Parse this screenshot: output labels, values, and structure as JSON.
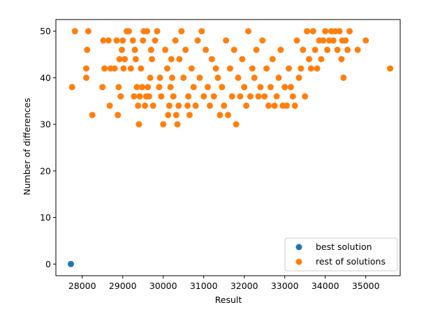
{
  "chart_data": {
    "type": "scatter",
    "xlabel": "Result",
    "ylabel": "Number of differences",
    "xlim": [
      27350,
      35850
    ],
    "ylim": [
      -2.5,
      52.5
    ],
    "xticks": [
      28000,
      29000,
      30000,
      31000,
      32000,
      33000,
      34000,
      35000
    ],
    "yticks": [
      0,
      10,
      20,
      30,
      40,
      50
    ],
    "grid": false,
    "legend": "lower right",
    "series": [
      {
        "name": "best solution",
        "color": "#1f77b4",
        "points": [
          [
            27720,
            0
          ]
        ]
      },
      {
        "name": "rest of solutions",
        "color": "#ff7f0e",
        "points": [
          [
            27750,
            38
          ],
          [
            27820,
            50
          ],
          [
            28100,
            42
          ],
          [
            28100,
            40
          ],
          [
            28120,
            46
          ],
          [
            28150,
            50
          ],
          [
            28250,
            32
          ],
          [
            28500,
            38
          ],
          [
            28520,
            48
          ],
          [
            28550,
            42
          ],
          [
            28650,
            48
          ],
          [
            28680,
            34
          ],
          [
            28700,
            42
          ],
          [
            28800,
            42
          ],
          [
            28850,
            48
          ],
          [
            28880,
            32
          ],
          [
            28900,
            38
          ],
          [
            28920,
            44
          ],
          [
            28950,
            36
          ],
          [
            28980,
            46
          ],
          [
            29000,
            48
          ],
          [
            29020,
            42
          ],
          [
            29050,
            44
          ],
          [
            29100,
            50
          ],
          [
            29150,
            50
          ],
          [
            29200,
            42
          ],
          [
            29250,
            48
          ],
          [
            29280,
            36
          ],
          [
            29300,
            46
          ],
          [
            29320,
            44
          ],
          [
            29350,
            38
          ],
          [
            29380,
            34
          ],
          [
            29400,
            30
          ],
          [
            29420,
            36
          ],
          [
            29450,
            42
          ],
          [
            29480,
            38
          ],
          [
            29500,
            48
          ],
          [
            29520,
            50
          ],
          [
            29550,
            34
          ],
          [
            29580,
            36
          ],
          [
            29600,
            50
          ],
          [
            29620,
            38
          ],
          [
            29650,
            36
          ],
          [
            29680,
            40
          ],
          [
            29700,
            46
          ],
          [
            29720,
            44
          ],
          [
            29750,
            34
          ],
          [
            29800,
            48
          ],
          [
            29850,
            50
          ],
          [
            29900,
            38
          ],
          [
            29920,
            40
          ],
          [
            29950,
            36
          ],
          [
            30000,
            30
          ],
          [
            30050,
            46
          ],
          [
            30100,
            42
          ],
          [
            30120,
            32
          ],
          [
            30150,
            34
          ],
          [
            30180,
            38
          ],
          [
            30200,
            44
          ],
          [
            30220,
            40
          ],
          [
            30250,
            36
          ],
          [
            30300,
            48
          ],
          [
            30320,
            32
          ],
          [
            30350,
            30
          ],
          [
            30380,
            34
          ],
          [
            30400,
            44
          ],
          [
            30450,
            50
          ],
          [
            30500,
            40
          ],
          [
            30550,
            46
          ],
          [
            30600,
            34
          ],
          [
            30620,
            36
          ],
          [
            30650,
            32
          ],
          [
            30700,
            42
          ],
          [
            30750,
            38
          ],
          [
            30800,
            34
          ],
          [
            30850,
            48
          ],
          [
            30900,
            40
          ],
          [
            30950,
            50
          ],
          [
            31000,
            36
          ],
          [
            31050,
            46
          ],
          [
            31100,
            38
          ],
          [
            31150,
            34
          ],
          [
            31200,
            44
          ],
          [
            31250,
            36
          ],
          [
            31300,
            42
          ],
          [
            31350,
            40
          ],
          [
            31400,
            32
          ],
          [
            31450,
            38
          ],
          [
            31500,
            34
          ],
          [
            31550,
            48
          ],
          [
            31600,
            32
          ],
          [
            31650,
            42
          ],
          [
            31700,
            36
          ],
          [
            31750,
            46
          ],
          [
            31800,
            30
          ],
          [
            31850,
            40
          ],
          [
            31900,
            36
          ],
          [
            31950,
            44
          ],
          [
            32000,
            38
          ],
          [
            32050,
            34
          ],
          [
            32100,
            50
          ],
          [
            32150,
            36
          ],
          [
            32200,
            42
          ],
          [
            32250,
            40
          ],
          [
            32300,
            46
          ],
          [
            32350,
            36
          ],
          [
            32400,
            38
          ],
          [
            32450,
            48
          ],
          [
            32500,
            36
          ],
          [
            32550,
            42
          ],
          [
            32600,
            34
          ],
          [
            32650,
            38
          ],
          [
            32700,
            44
          ],
          [
            32750,
            34
          ],
          [
            32800,
            36
          ],
          [
            32850,
            40
          ],
          [
            32900,
            46
          ],
          [
            32950,
            34
          ],
          [
            33000,
            38
          ],
          [
            33050,
            34
          ],
          [
            33100,
            42
          ],
          [
            33150,
            38
          ],
          [
            33200,
            36
          ],
          [
            33250,
            34
          ],
          [
            33300,
            48
          ],
          [
            33350,
            40
          ],
          [
            33400,
            42
          ],
          [
            33450,
            46
          ],
          [
            33500,
            36
          ],
          [
            33550,
            50
          ],
          [
            33600,
            44
          ],
          [
            33650,
            42
          ],
          [
            33700,
            50
          ],
          [
            33750,
            46
          ],
          [
            33800,
            42
          ],
          [
            33850,
            48
          ],
          [
            33900,
            44
          ],
          [
            33950,
            48
          ],
          [
            34000,
            50
          ],
          [
            34050,
            46
          ],
          [
            34100,
            48
          ],
          [
            34150,
            50
          ],
          [
            34200,
            48
          ],
          [
            34250,
            50
          ],
          [
            34300,
            46
          ],
          [
            34350,
            50
          ],
          [
            34400,
            44
          ],
          [
            34420,
            48
          ],
          [
            34450,
            40
          ],
          [
            34500,
            48
          ],
          [
            34550,
            46
          ],
          [
            34600,
            50
          ],
          [
            34800,
            46
          ],
          [
            35000,
            48
          ],
          [
            35600,
            42
          ]
        ]
      }
    ]
  }
}
